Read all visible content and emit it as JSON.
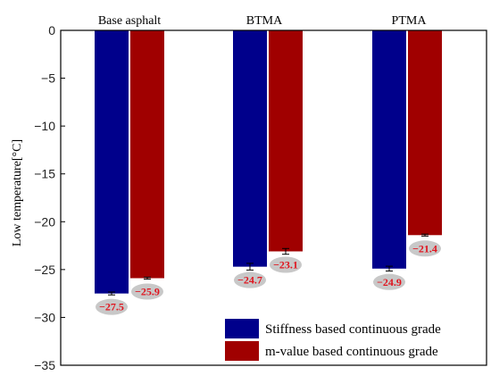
{
  "chart_data": {
    "type": "bar",
    "title": "",
    "xlabel": "",
    "ylabel": "Low temperature[°C]",
    "ylim": [
      -35,
      0
    ],
    "yticks": [
      0,
      -5,
      -10,
      -15,
      -20,
      -25,
      -30,
      -35
    ],
    "ytick_labels": [
      "0",
      "−5",
      "−10",
      "−15",
      "−20",
      "−25",
      "−30",
      "−35"
    ],
    "categories": [
      "Base asphalt",
      "BTMA",
      "PTMA"
    ],
    "series": [
      {
        "name": "Stiffness based continuous grade",
        "color": "#00008b",
        "values": [
          -27.5,
          -24.7,
          -24.9
        ],
        "errors": [
          0.15,
          0.35,
          0.25
        ],
        "labels": [
          "−27.5",
          "−24.7",
          "−24.9"
        ]
      },
      {
        "name": "m-value based continuous grade",
        "color": "#a00000",
        "values": [
          -25.9,
          -23.1,
          -21.4
        ],
        "errors": [
          0.1,
          0.3,
          0.1
        ],
        "labels": [
          "−25.9",
          "−23.1",
          "−21.4"
        ]
      }
    ],
    "legend_position": "bottom-right",
    "grid": false
  }
}
